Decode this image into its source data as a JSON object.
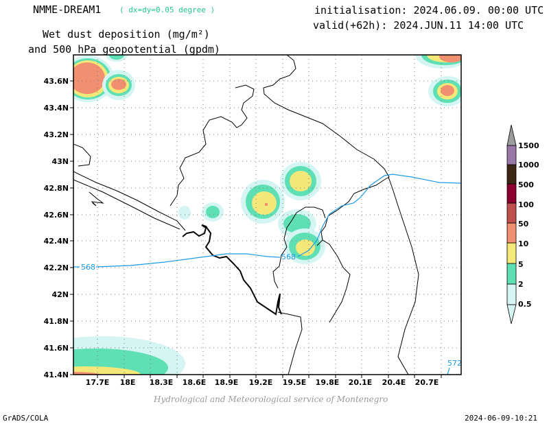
{
  "header": {
    "model": "NMME-DREAM1",
    "resolution": "( dx=dy=0.05 degree )",
    "variable_line1": "Wet dust deposition (mg/m²)",
    "variable_line2": "and 500 hPa geopotential (gpdm)",
    "initialisation": "initialisation: 2024.06.09. 00:00 UTC",
    "valid": "valid(+62h): 2024.JUN.11 14:00 UTC"
  },
  "footer": {
    "credit": "Hydrological and Meteorological service of Montenegro",
    "software": "GrADS/COLA",
    "timestamp": "2024-06-09-10:21"
  },
  "map": {
    "lon_ticks": [
      "17.7E",
      "18E",
      "18.3E",
      "18.6E",
      "18.9E",
      "19.2E",
      "19.5E",
      "19.8E",
      "20.1E",
      "20.4E",
      "20.7E"
    ],
    "lat_ticks": [
      "43.6N",
      "43.4N",
      "43.2N",
      "43N",
      "42.8N",
      "42.6N",
      "42.4N",
      "42.2N",
      "42N",
      "41.8N",
      "41.6N",
      "41.4N"
    ],
    "contour_labels": [
      "568",
      "568",
      "572"
    ]
  },
  "colorbar": {
    "levels": [
      "0.5",
      "2",
      "5",
      "10",
      "50",
      "100",
      "500",
      "1000",
      "1500"
    ],
    "colors": [
      "#d4f5f2",
      "#5fe0b4",
      "#f5e87a",
      "#f09070",
      "#c0504d",
      "#8c0030",
      "#3c2616",
      "#9878a8",
      "#9c9c9c"
    ]
  }
}
